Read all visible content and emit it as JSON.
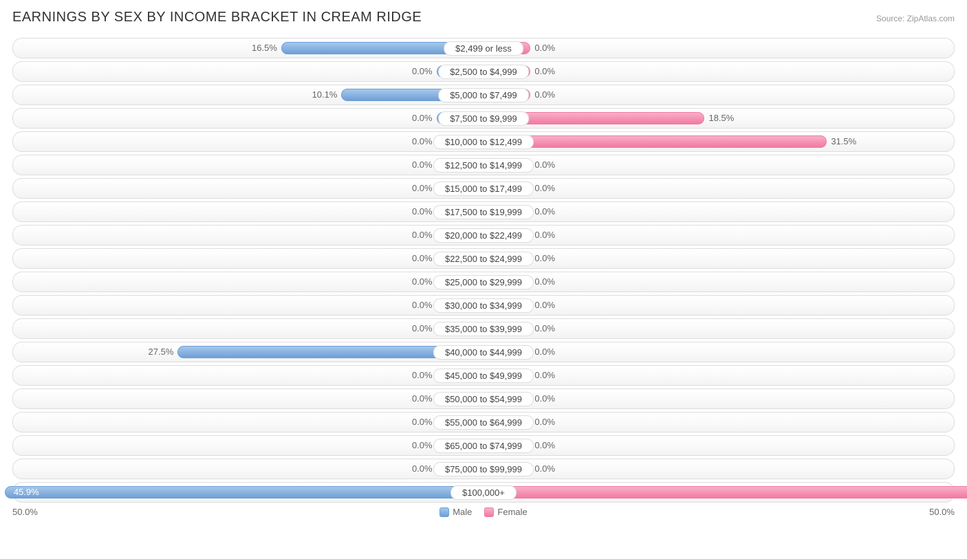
{
  "title": "EARNINGS BY SEX BY INCOME BRACKET IN CREAM RIDGE",
  "source": "Source: ZipAtlas.com",
  "chart": {
    "type": "diverging-bar",
    "axis_max_pct": 50.0,
    "axis_left_label": "50.0%",
    "axis_right_label": "50.0%",
    "base_bar_pct": 5.0,
    "male_color": "#8ab3e0",
    "male_border": "#6a9fd4",
    "female_color": "#f594b5",
    "female_border": "#f07ba0",
    "row_border": "#dddddd",
    "row_bg_top": "#ffffff",
    "row_bg_bot": "#f3f3f3",
    "text_color": "#666666",
    "label_fontsize": 13,
    "rows": [
      {
        "label": "$2,499 or less",
        "male": 16.5,
        "female": 0.0
      },
      {
        "label": "$2,500 to $4,999",
        "male": 0.0,
        "female": 0.0
      },
      {
        "label": "$5,000 to $7,499",
        "male": 10.1,
        "female": 0.0
      },
      {
        "label": "$7,500 to $9,999",
        "male": 0.0,
        "female": 18.5
      },
      {
        "label": "$10,000 to $12,499",
        "male": 0.0,
        "female": 31.5
      },
      {
        "label": "$12,500 to $14,999",
        "male": 0.0,
        "female": 0.0
      },
      {
        "label": "$15,000 to $17,499",
        "male": 0.0,
        "female": 0.0
      },
      {
        "label": "$17,500 to $19,999",
        "male": 0.0,
        "female": 0.0
      },
      {
        "label": "$20,000 to $22,499",
        "male": 0.0,
        "female": 0.0
      },
      {
        "label": "$22,500 to $24,999",
        "male": 0.0,
        "female": 0.0
      },
      {
        "label": "$25,000 to $29,999",
        "male": 0.0,
        "female": 0.0
      },
      {
        "label": "$30,000 to $34,999",
        "male": 0.0,
        "female": 0.0
      },
      {
        "label": "$35,000 to $39,999",
        "male": 0.0,
        "female": 0.0
      },
      {
        "label": "$40,000 to $44,999",
        "male": 27.5,
        "female": 0.0
      },
      {
        "label": "$45,000 to $49,999",
        "male": 0.0,
        "female": 0.0
      },
      {
        "label": "$50,000 to $54,999",
        "male": 0.0,
        "female": 0.0
      },
      {
        "label": "$55,000 to $64,999",
        "male": 0.0,
        "female": 0.0
      },
      {
        "label": "$65,000 to $74,999",
        "male": 0.0,
        "female": 0.0
      },
      {
        "label": "$75,000 to $99,999",
        "male": 0.0,
        "female": 0.0
      },
      {
        "label": "$100,000+",
        "male": 45.9,
        "female": 50.0
      }
    ]
  },
  "legend": {
    "male": "Male",
    "female": "Female"
  }
}
